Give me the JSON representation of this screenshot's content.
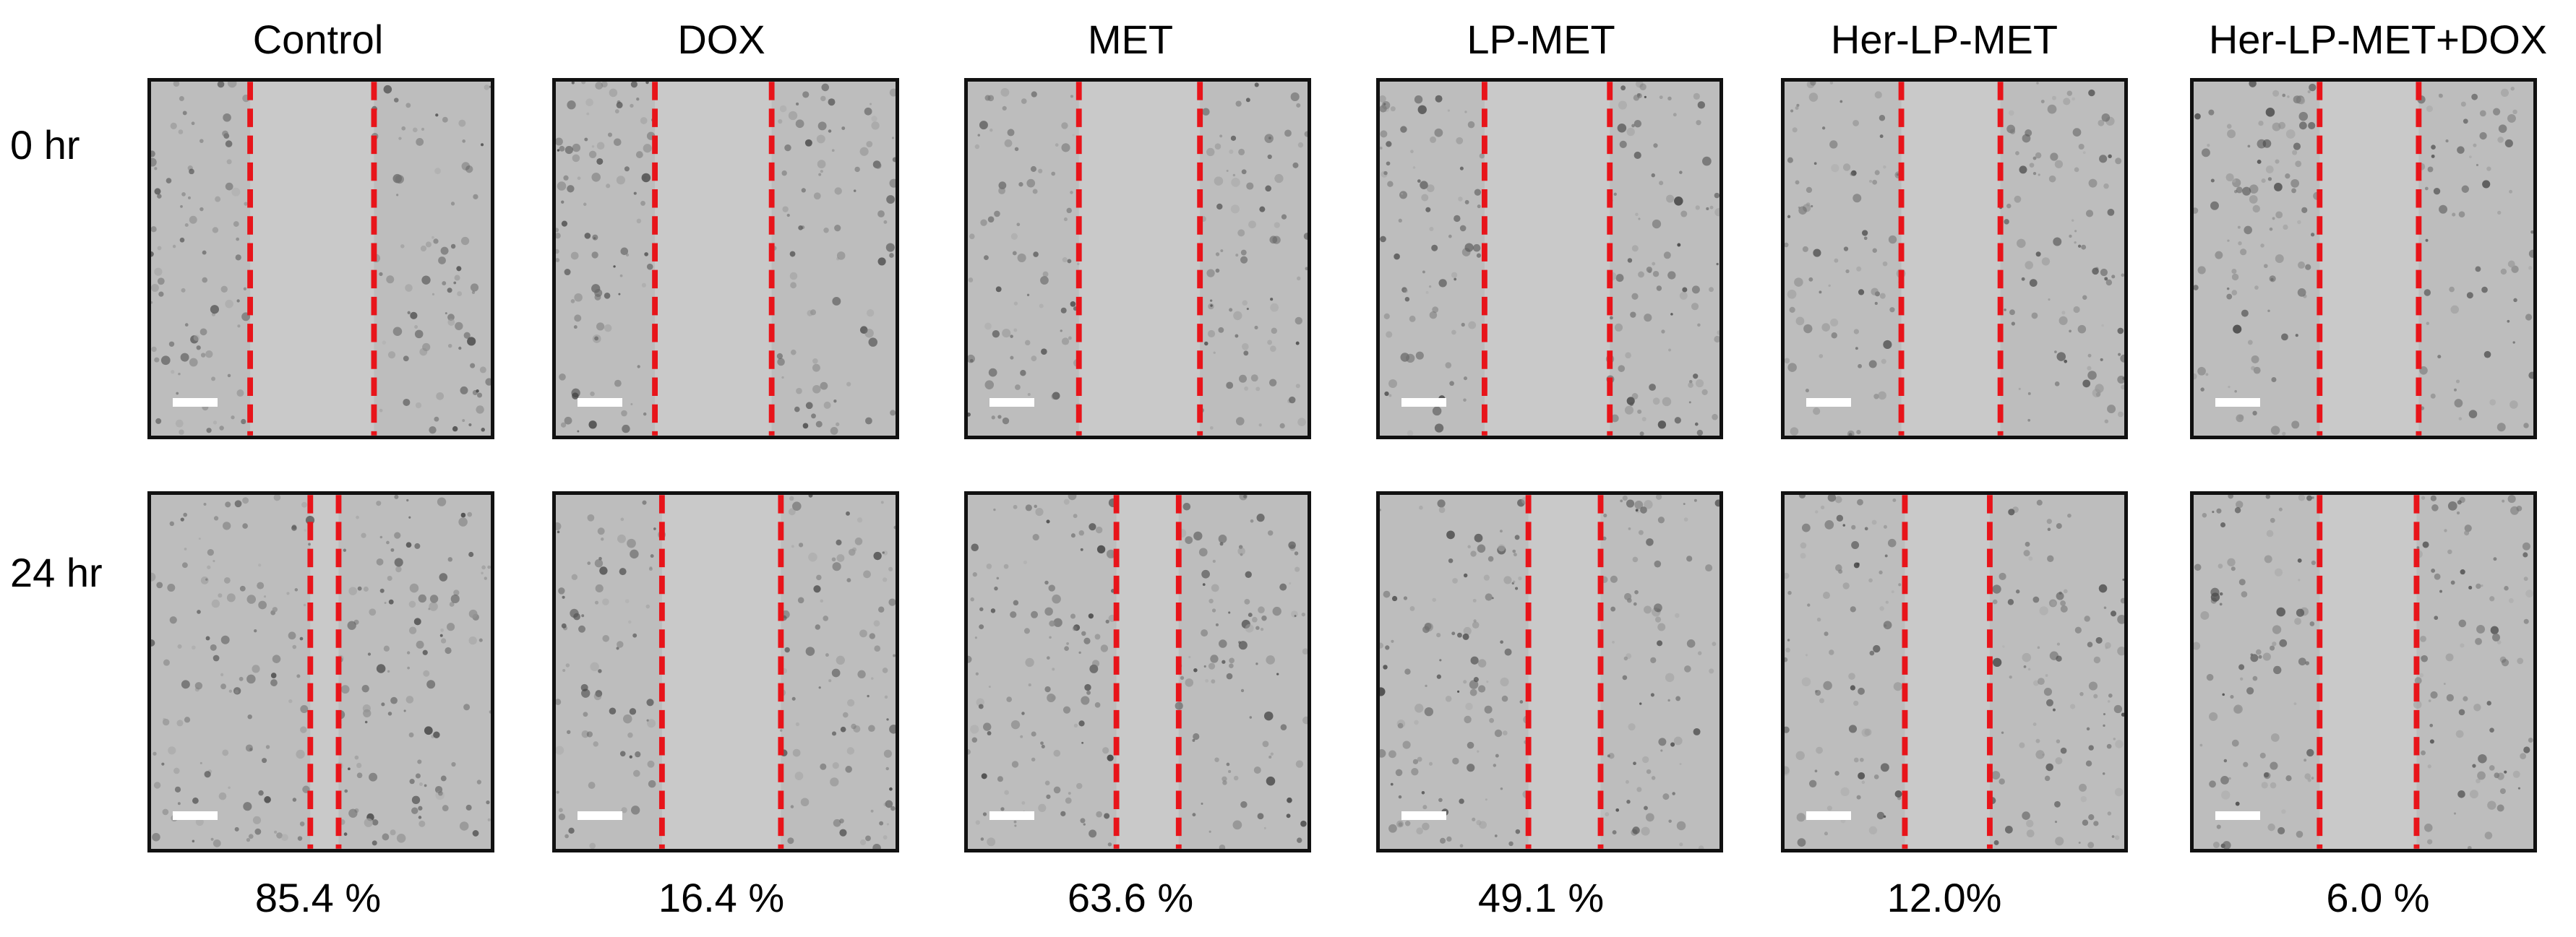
{
  "columns": [
    "Control",
    "DOX",
    "MET",
    "LP-MET",
    "Her-LP-MET",
    "Her-LP-MET+DOX"
  ],
  "rows": [
    "0 hr",
    "24 hr"
  ],
  "closure": [
    "85.4 %",
    "16.4 %",
    "63.6 %",
    "49.1 %",
    "12.0%",
    "6.0 %"
  ],
  "colors": {
    "border": "#111111",
    "line": "#e8141a",
    "scar": "#c9c9c9",
    "cells": "#9a9a9a"
  }
}
